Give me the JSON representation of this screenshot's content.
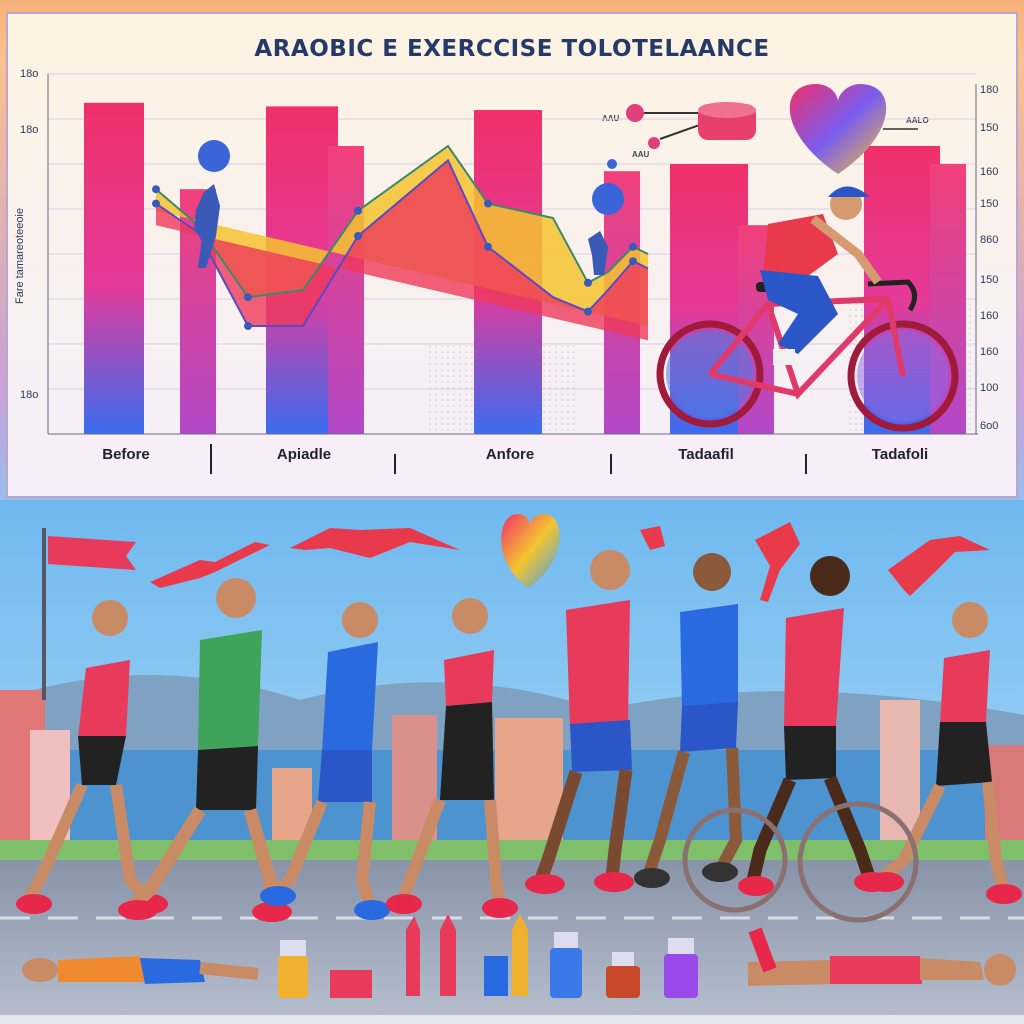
{
  "chart": {
    "title": "ARAOBIC E EXERCCISE TOLOTELAANCE",
    "y_axis_label": "Fare tamareoteeoie",
    "left_ticks": [
      "18o",
      "18o",
      "18o"
    ],
    "right_ticks": [
      "180",
      "150",
      "160",
      "150",
      "860",
      "150",
      "160",
      "160",
      "100",
      "6o0"
    ],
    "x_labels": [
      "Before",
      "Apiadle",
      "Anfore",
      "Tadaafil",
      "Tadafoli"
    ],
    "small_labels": [
      "AAU",
      "AAU",
      "AALO"
    ]
  },
  "chart_data": {
    "type": "bar",
    "categories": [
      "Before",
      "Apiadle",
      "Anfore",
      "Tadaafil",
      "Tadafoli"
    ],
    "series": [
      {
        "values": [
          92,
          91,
          90,
          75,
          80
        ]
      },
      {
        "values": [
          68,
          80,
          73,
          58,
          75
        ]
      }
    ],
    "lines": [
      {
        "values": [
          68,
          58,
          38,
          40,
          62,
          80,
          64,
          60,
          42,
          45,
          52,
          50
        ]
      },
      {
        "values": [
          64,
          56,
          30,
          30,
          55,
          76,
          52,
          38,
          34,
          40,
          48,
          46
        ]
      }
    ]
  },
  "colors": {
    "bar_top": "#f0306a",
    "bar_bottom": "#3a6cf0",
    "area_yellow": "#f4c430",
    "area_red": "#ee3a5a",
    "sky": "#8fc6f2",
    "road": "#9ea7b8"
  }
}
